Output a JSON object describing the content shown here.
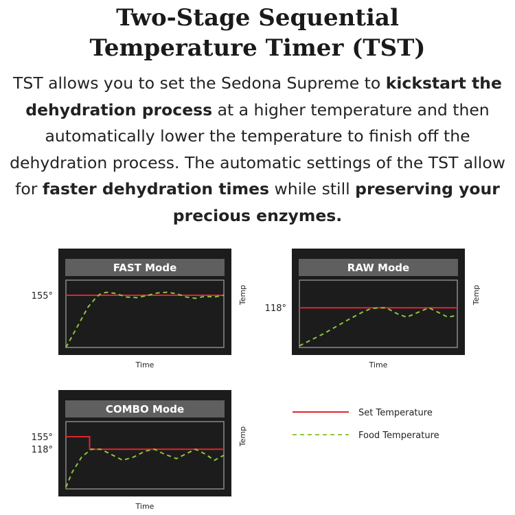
{
  "header": {
    "title_line1": "Two-Stage Sequential",
    "title_line2": "Temperature Timer (TST)"
  },
  "intro": {
    "p1": "TST allows you to set the Sedona Supreme to ",
    "b1": "kickstart the dehydration process",
    "p2": " at a higher temperature and then automatically lower the temperature to finish off the dehydration process. The automatic settings of the TST allow for ",
    "b2": "faster dehydration times",
    "p3": " while still ",
    "b3": "preserving your precious enzymes."
  },
  "colors": {
    "set_temperature": "#e0252c",
    "food_temperature": "#8cc63f",
    "panel_bg": "#1c1c1c",
    "panel_border": "#8a8a8a",
    "title_bar": "#5f5f5f"
  },
  "legend": {
    "set_label": "Set Temperature",
    "food_label": "Food Temperature"
  },
  "chart_data": [
    {
      "type": "line",
      "title": "FAST Mode",
      "xlabel": "Time",
      "ylabel": "Temp",
      "ylim": [
        0,
        200
      ],
      "tick_labels": [
        "155°"
      ],
      "series": [
        {
          "name": "Set Temperature",
          "style": "solid",
          "x": [
            0,
            100
          ],
          "y": [
            155,
            155
          ]
        },
        {
          "name": "Food Temperature",
          "style": "dashed",
          "x": [
            0,
            7,
            14,
            19,
            22,
            26,
            32,
            38,
            45,
            52,
            58,
            64,
            70,
            76,
            82,
            88,
            94,
            100
          ],
          "y": [
            0,
            60,
            120,
            148,
            160,
            164,
            160,
            150,
            148,
            155,
            162,
            164,
            160,
            150,
            146,
            152,
            150,
            155
          ]
        }
      ]
    },
    {
      "type": "line",
      "title": "RAW Mode",
      "xlabel": "Time",
      "ylabel": "Temp",
      "ylim": [
        0,
        200
      ],
      "tick_labels": [
        "118°"
      ],
      "series": [
        {
          "name": "Set Temperature",
          "style": "solid",
          "x": [
            0,
            100
          ],
          "y": [
            118,
            118
          ]
        },
        {
          "name": "Food Temperature",
          "style": "dashed",
          "x": [
            0,
            15,
            30,
            40,
            45,
            50,
            55,
            62,
            68,
            75,
            82,
            88,
            94,
            100
          ],
          "y": [
            5,
            40,
            80,
            105,
            115,
            118,
            118,
            100,
            90,
            104,
            118,
            104,
            90,
            96
          ]
        }
      ]
    },
    {
      "type": "line",
      "title": "COMBO Mode",
      "xlabel": "Time",
      "ylabel": "Temp",
      "ylim": [
        0,
        200
      ],
      "tick_labels": [
        "155°",
        "118°"
      ],
      "series": [
        {
          "name": "Set Temperature",
          "style": "solid",
          "x": [
            0,
            15,
            15,
            100
          ],
          "y": [
            155,
            155,
            118,
            118
          ]
        },
        {
          "name": "Food Temperature",
          "style": "dashed",
          "x": [
            0,
            4,
            10,
            16,
            22,
            28,
            36,
            43,
            50,
            56,
            62,
            70,
            76,
            82,
            88,
            94,
            100
          ],
          "y": [
            5,
            50,
            95,
            118,
            118,
            104,
            85,
            95,
            112,
            118,
            104,
            90,
            104,
            118,
            104,
            85,
            100
          ]
        }
      ]
    }
  ]
}
